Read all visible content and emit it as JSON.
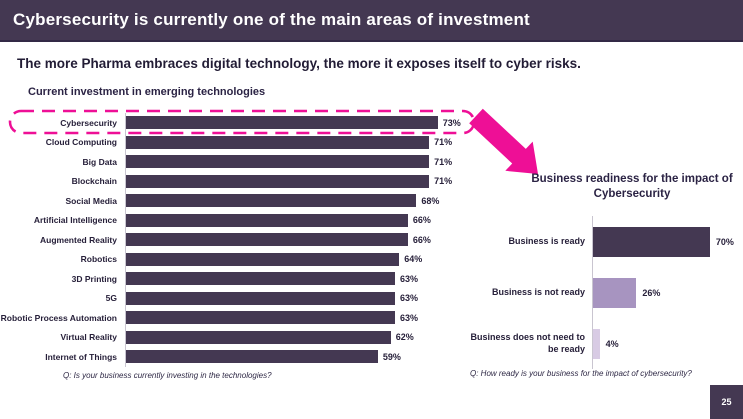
{
  "colors": {
    "purple": "#443852",
    "pink": "#ee0f96",
    "purple_mid": "#a794c0",
    "purple_light": "#d8cbe4"
  },
  "header": {
    "title": "Cybersecurity is currently one of the main areas of investment"
  },
  "subtitle": "The more Pharma embraces digital technology, the more it exposes itself to cyber risks.",
  "page_number": "25",
  "chart_data": [
    {
      "type": "bar",
      "orientation": "horizontal",
      "title": "Current investment in emerging technologies",
      "footnote": "Q: Is your business currently investing in the technologies?",
      "categories": [
        "Cybersecurity",
        "Cloud Computing",
        "Big Data",
        "Blockchain",
        "Social Media",
        "Artificial Intelligence",
        "Augmented Reality",
        "Robotics",
        "3D Printing",
        "5G",
        "Robotic Process Automation",
        "Virtual Reality",
        "Internet of Things"
      ],
      "values": [
        73,
        71,
        71,
        71,
        68,
        66,
        66,
        64,
        63,
        63,
        63,
        62,
        59
      ],
      "value_labels": [
        "73%",
        "71%",
        "71%",
        "71%",
        "68%",
        "66%",
        "66%",
        "64%",
        "63%",
        "63%",
        "63%",
        "62%",
        "59%"
      ],
      "xlim": [
        0,
        100
      ],
      "grid": false,
      "legend": false,
      "bar_color": "#443852",
      "highlighted_category": "Cybersecurity"
    },
    {
      "type": "bar",
      "orientation": "horizontal",
      "title": "Business readiness for the impact of Cybersecurity",
      "footnote": "Q: How ready is your business for the impact of cybersecurity?",
      "categories": [
        "Business is ready",
        "Business is not ready",
        "Business does not need to be ready"
      ],
      "values": [
        70,
        26,
        4
      ],
      "value_labels": [
        "70%",
        "26%",
        "4%"
      ],
      "xlim": [
        0,
        100
      ],
      "grid": false,
      "legend": false,
      "bar_colors": [
        "#443852",
        "#a794c0",
        "#d8cbe4"
      ]
    }
  ]
}
